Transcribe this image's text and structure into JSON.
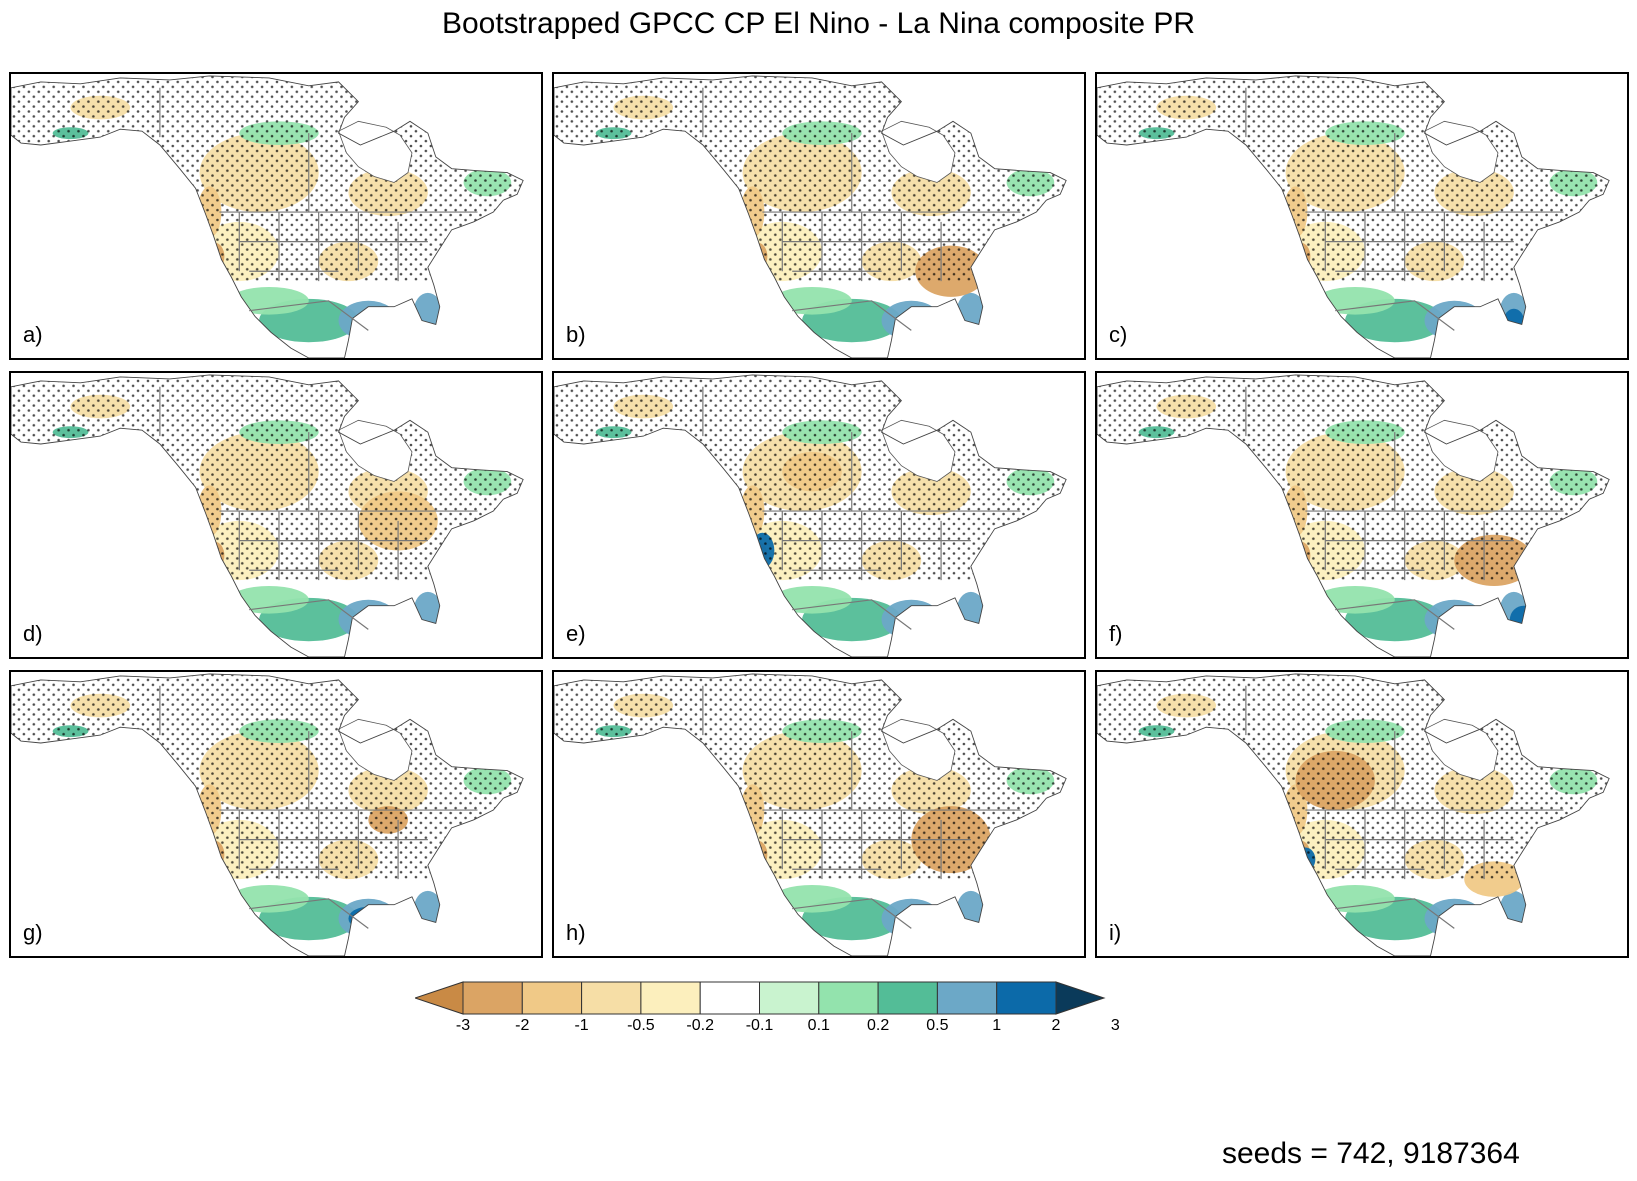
{
  "title": "Bootstrapped GPCC CP El Nino - La Nina composite PR",
  "panels": [
    {
      "label": "a)",
      "variant": 0
    },
    {
      "label": "b)",
      "variant": 1
    },
    {
      "label": "c)",
      "variant": 2
    },
    {
      "label": "d)",
      "variant": 3
    },
    {
      "label": "e)",
      "variant": 4
    },
    {
      "label": "f)",
      "variant": 5
    },
    {
      "label": "g)",
      "variant": 6
    },
    {
      "label": "h)",
      "variant": 7
    },
    {
      "label": "i)",
      "variant": 8
    }
  ],
  "colorbar": {
    "tick_labels": [
      "-3",
      "-2",
      "-1",
      "-0.5",
      "-0.2",
      "-0.1",
      "0.1",
      "0.2",
      "0.5",
      "1",
      "2",
      "3"
    ],
    "colors": [
      "#c98a45",
      "#dba464",
      "#f0c987",
      "#f6dea6",
      "#fcefbd",
      "#ffffff",
      "#c9f3cf",
      "#93e3ad",
      "#53bd97",
      "#6ca8c7",
      "#0c6aa9",
      "#0a3a5a"
    ],
    "under_color": "#c98a45",
    "over_color": "#0a3a5a"
  },
  "seeds_text": "seeds = 742, 9187364"
}
